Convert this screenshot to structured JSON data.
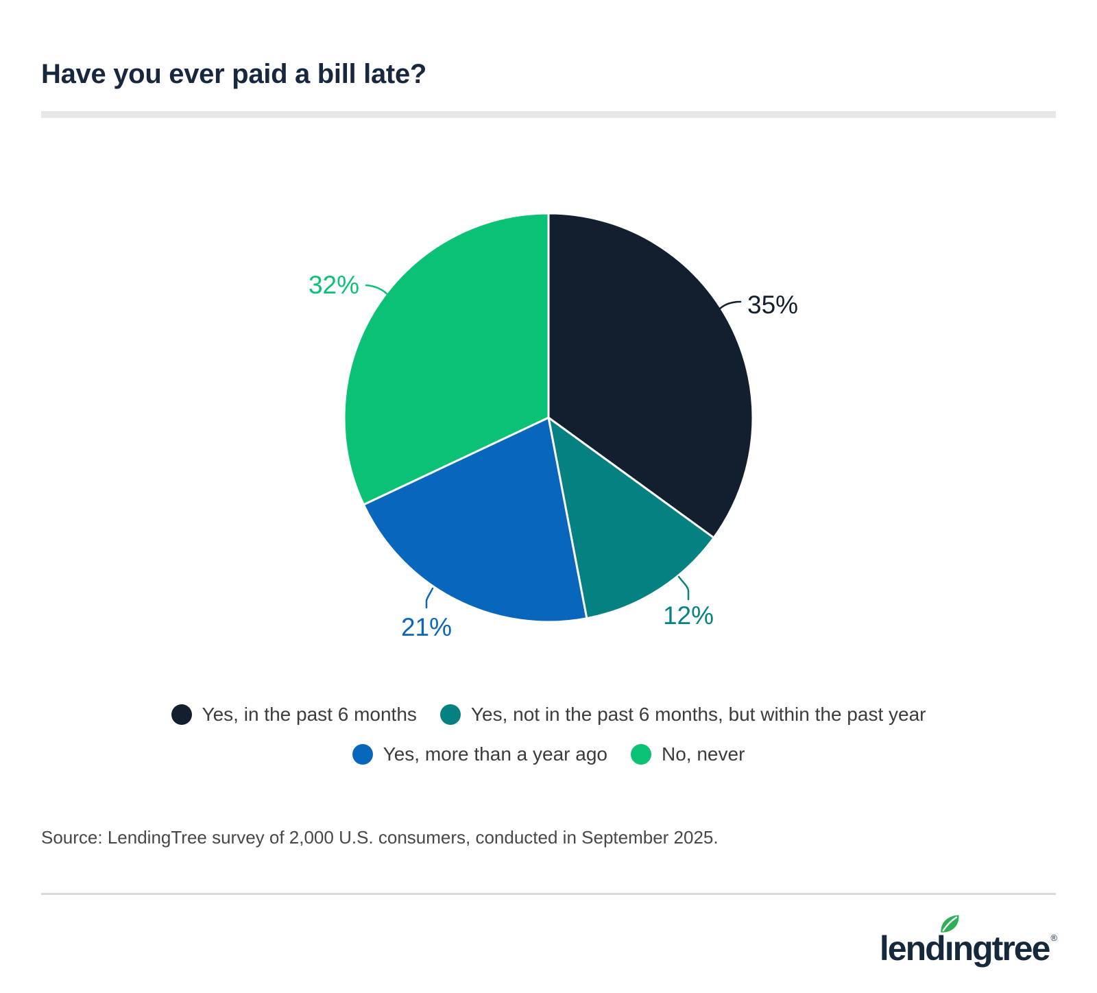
{
  "header": {
    "title": "Have you ever paid a bill late?"
  },
  "chart_data": {
    "type": "pie",
    "title": "Have you ever paid a bill late?",
    "categories": [
      "Yes, in the past 6 months",
      "Yes, not in the past 6 months, but within the past year",
      "Yes, more than a year ago",
      "No, never"
    ],
    "values": [
      35,
      12,
      21,
      32
    ],
    "point_labels": [
      "35%",
      "12%",
      "21%",
      "32%"
    ],
    "colors": [
      "#111F2E",
      "#068181",
      "#0866BC",
      "#0BC175"
    ],
    "slice_border_color": "#FFFFFF",
    "start_angle_deg": 0,
    "direction": "clockwise",
    "legend_position": "bottom"
  },
  "legend": {
    "items": [
      {
        "label": "Yes, in the past 6 months",
        "color": "#111F2E"
      },
      {
        "label": "Yes, not in the past 6 months, but within the past year",
        "color": "#068181"
      },
      {
        "label": "Yes, more than a year ago",
        "color": "#0866BC"
      },
      {
        "label": "No, never",
        "color": "#0BC175"
      }
    ]
  },
  "source": {
    "text": "Source: LendingTree survey of 2,000 U.S. consumers, conducted in September 2025."
  },
  "brand": {
    "wordmark_pre": "lend",
    "wordmark_i": "ı",
    "wordmark_post": "ngtree",
    "registered_mark": "®",
    "navy": "#16283C",
    "leaf_color": "#2FAF55"
  }
}
